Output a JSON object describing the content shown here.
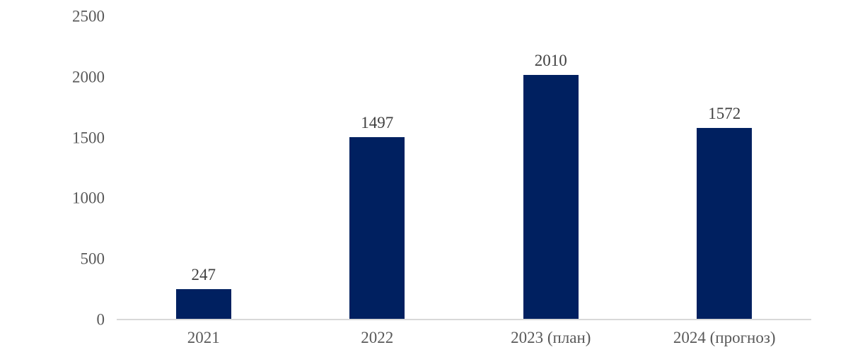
{
  "chart_data": {
    "type": "bar",
    "title": "",
    "xlabel": "",
    "ylabel": "",
    "categories": [
      "2021",
      "2022",
      "2023 (план)",
      "2024 (прогноз)"
    ],
    "values": [
      247,
      1497,
      2010,
      1572
    ],
    "data_labels": [
      "247",
      "1497",
      "2010",
      "1572"
    ],
    "ylim": [
      0,
      2500
    ],
    "yticks": [
      "0",
      "500",
      "1000",
      "1500",
      "2000",
      "2500"
    ],
    "grid": false,
    "legend": false,
    "colors": {
      "bar": "#002060",
      "axis_line": "#d9d9d9",
      "tick_label": "#595959",
      "data_label": "#404040",
      "background": "#ffffff"
    }
  }
}
